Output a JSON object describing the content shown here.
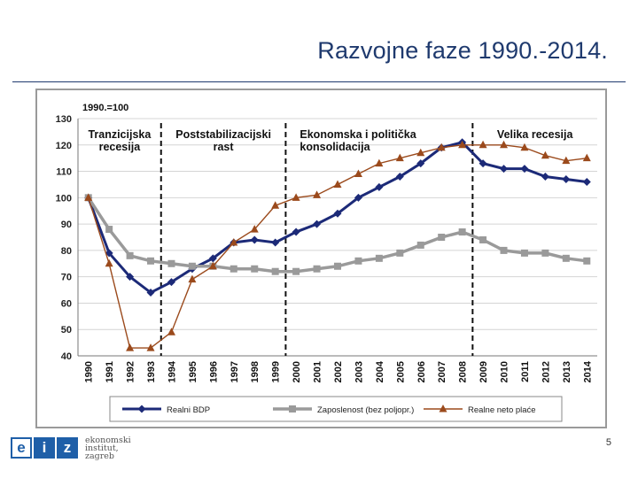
{
  "slide": {
    "title": "Razvojne faze 1990.-2014.",
    "page_number": "5",
    "logo": {
      "letters": [
        "e",
        "i",
        "z"
      ],
      "text_lines": [
        "ekonomski",
        "institut,",
        "zagreb"
      ]
    }
  },
  "chart_data": {
    "type": "line",
    "title": "",
    "index_label": "1990.=100",
    "categories": [
      "1990",
      "1991",
      "1992",
      "1993",
      "1994",
      "1995",
      "1996",
      "1997",
      "1998",
      "1999",
      "2000",
      "2001",
      "2002",
      "2003",
      "2004",
      "2005",
      "2006",
      "2007",
      "2008",
      "2009",
      "2010",
      "2011",
      "2012",
      "2013",
      "2014"
    ],
    "ylim": [
      40,
      130
    ],
    "yticks": [
      40,
      50,
      60,
      70,
      80,
      90,
      100,
      110,
      120,
      130
    ],
    "series": [
      {
        "name": "Realni BDP",
        "color": "#1c2a78",
        "marker": "diamond",
        "values": [
          100,
          79,
          70,
          64,
          68,
          73,
          77,
          83,
          84,
          83,
          87,
          90,
          94,
          100,
          104,
          108,
          113,
          119,
          121,
          113,
          111,
          111,
          108,
          107,
          106
        ]
      },
      {
        "name": "Zaposlenost (bez poljopr.)",
        "color": "#9a9a9a",
        "marker": "square",
        "values": [
          100,
          88,
          78,
          76,
          75,
          74,
          74,
          73,
          73,
          72,
          72,
          73,
          74,
          76,
          77,
          79,
          82,
          85,
          87,
          84,
          80,
          79,
          79,
          77,
          76
        ]
      },
      {
        "name": "Realne neto plaće",
        "color": "#9b4a1c",
        "marker": "triangle",
        "values": [
          100,
          75,
          43,
          43,
          49,
          69,
          74,
          83,
          88,
          97,
          100,
          101,
          105,
          109,
          113,
          115,
          117,
          119,
          120,
          120,
          120,
          119,
          116,
          114,
          115
        ]
      }
    ],
    "phases": [
      {
        "label_lines": [
          "Tranzicijska",
          "recesija"
        ],
        "end_after": "1993"
      },
      {
        "label_lines": [
          "Poststabilizacijski",
          "rast"
        ],
        "end_after": "1999"
      },
      {
        "label_lines": [
          "Ekonomska i politička",
          "konsolidacija"
        ],
        "end_after": "2008"
      },
      {
        "label_lines": [
          "Velika recesija"
        ],
        "end_after": null
      }
    ],
    "grid": true,
    "legend_position": "bottom"
  }
}
